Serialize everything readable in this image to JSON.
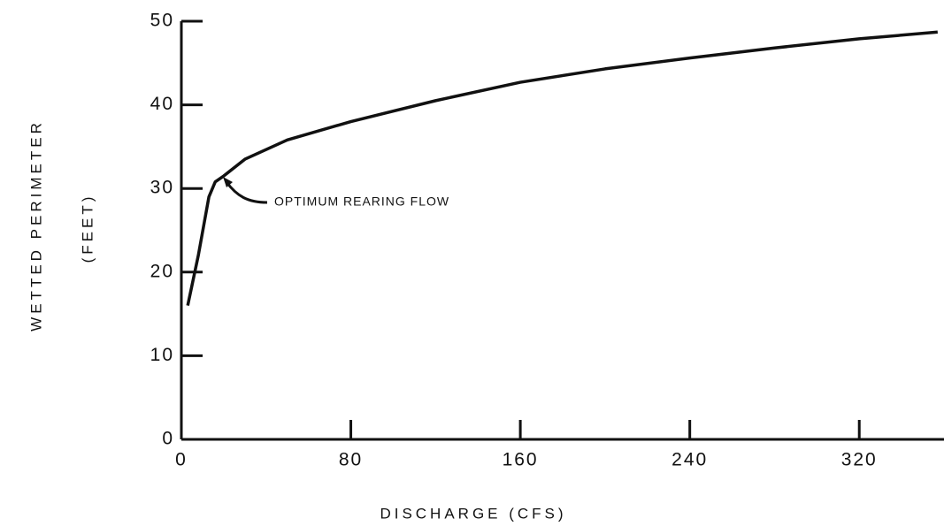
{
  "chart_data": {
    "type": "line",
    "xlabel": "DISCHARGE (CFS)",
    "ylabel": "WETTED PERIMETER",
    "ylabel_unit": "(FEET)",
    "annotation": "OPTIMUM REARING FLOW",
    "x": [
      3,
      8,
      13,
      16,
      20,
      30,
      50,
      80,
      120,
      160,
      200,
      240,
      280,
      320,
      357
    ],
    "series": [
      {
        "name": null,
        "color": "#111111",
        "values": [
          16,
          22,
          29,
          30.8,
          31.5,
          33.5,
          35.8,
          38,
          40.5,
          42.7,
          44.3,
          45.6,
          46.8,
          47.9,
          48.7
        ]
      }
    ],
    "xlim": [
      0,
      360
    ],
    "xticks": [
      0,
      80,
      160,
      240,
      320
    ],
    "ylim": [
      0,
      50
    ],
    "yticks": [
      0,
      10,
      20,
      30,
      40,
      50
    ]
  }
}
